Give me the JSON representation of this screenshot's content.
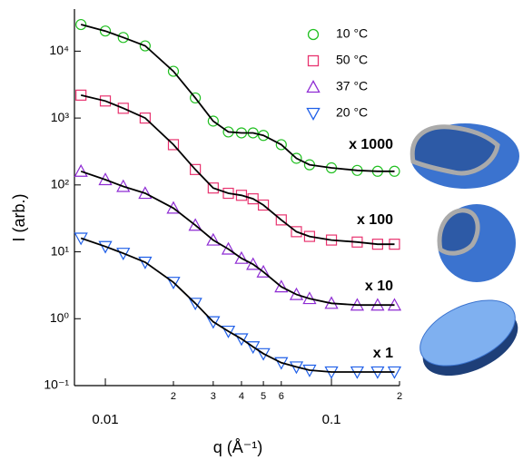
{
  "chart_data": {
    "type": "scatter",
    "x_label": "q (Å⁻¹)",
    "y_label": "I (arb.)",
    "x_log": true,
    "y_log": true,
    "xlim": [
      0.0073,
      0.2
    ],
    "ylim": [
      0.1,
      40000
    ],
    "xticks": [
      0.01,
      {
        "value": 0.02,
        "label": "2"
      },
      {
        "value": 0.03,
        "label": "3"
      },
      {
        "value": 0.04,
        "label": "4"
      },
      {
        "value": 0.05,
        "label": "5"
      },
      {
        "value": 0.06,
        "label": "6"
      },
      0.1,
      {
        "value": 0.2,
        "label": "2"
      }
    ],
    "yticks": [
      {
        "value": 0.1,
        "label": "10⁻¹"
      },
      {
        "value": 1,
        "label": "10⁰"
      },
      {
        "value": 10,
        "label": "10¹"
      },
      {
        "value": 100,
        "label": "10²"
      },
      {
        "value": 1000,
        "label": "10³"
      },
      {
        "value": 10000,
        "label": "10⁴"
      }
    ],
    "legend": "upper right",
    "fit_color": "#000000",
    "x": [
      0.0078,
      0.01,
      0.012,
      0.015,
      0.02,
      0.025,
      0.03,
      0.035,
      0.04,
      0.045,
      0.05,
      0.06,
      0.07,
      0.08,
      0.1,
      0.13,
      0.16,
      0.19
    ],
    "series": [
      {
        "name": "10 °C",
        "color": "#22c022",
        "marker": "circle",
        "values": [
          25000,
          20000,
          16000,
          12000,
          5000,
          2000,
          900,
          620,
          600,
          600,
          550,
          400,
          250,
          200,
          180,
          165,
          160,
          160
        ]
      },
      {
        "name": "50 °C",
        "color": "#e8336f",
        "marker": "square",
        "values": [
          2200,
          1800,
          1400,
          1000,
          400,
          170,
          90,
          75,
          70,
          62,
          50,
          30,
          20,
          17,
          15,
          14,
          13,
          13
        ]
      },
      {
        "name": "37 °C",
        "color": "#8e2bd3",
        "marker": "triangle",
        "values": [
          160,
          120,
          95,
          75,
          45,
          25,
          15,
          11,
          8,
          6.5,
          5,
          3,
          2.3,
          2,
          1.7,
          1.6,
          1.6,
          1.6
        ]
      },
      {
        "name": "20 °C",
        "color": "#1f5fe8",
        "marker": "triangle-down",
        "values": [
          16,
          12,
          9.5,
          7,
          3.5,
          1.7,
          0.9,
          0.65,
          0.5,
          0.38,
          0.3,
          0.22,
          0.19,
          0.17,
          0.16,
          0.16,
          0.16,
          0.16
        ]
      }
    ],
    "annotations": [
      "x 1000",
      "x 100",
      "x 10",
      "x 1"
    ]
  }
}
